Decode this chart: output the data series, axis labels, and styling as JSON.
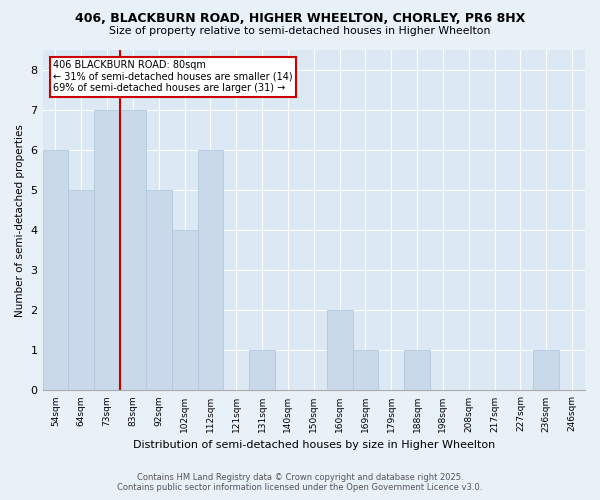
{
  "title": "406, BLACKBURN ROAD, HIGHER WHEELTON, CHORLEY, PR6 8HX",
  "subtitle": "Size of property relative to semi-detached houses in Higher Wheelton",
  "xlabel": "Distribution of semi-detached houses by size in Higher Wheelton",
  "ylabel": "Number of semi-detached properties",
  "bins": [
    "54sqm",
    "64sqm",
    "73sqm",
    "83sqm",
    "92sqm",
    "102sqm",
    "112sqm",
    "121sqm",
    "131sqm",
    "140sqm",
    "150sqm",
    "160sqm",
    "169sqm",
    "179sqm",
    "188sqm",
    "198sqm",
    "208sqm",
    "217sqm",
    "227sqm",
    "236sqm",
    "246sqm"
  ],
  "values": [
    6,
    5,
    7,
    7,
    5,
    4,
    6,
    0,
    1,
    0,
    0,
    2,
    1,
    0,
    1,
    0,
    0,
    0,
    0,
    1,
    0
  ],
  "bar_color": "#c9d9ea",
  "bar_edge_color": "#b0c8dc",
  "ref_line_bin": 2,
  "ref_line_label": "406 BLACKBURN ROAD: 80sqm",
  "annotation_smaller": "← 31% of semi-detached houses are smaller (14)",
  "annotation_larger": "69% of semi-detached houses are larger (31) →",
  "annotation_box_color": "#ffffff",
  "annotation_box_edge": "#cc0000",
  "ref_line_color": "#cc0000",
  "ylim": [
    0,
    8.5
  ],
  "yticks": [
    0,
    1,
    2,
    3,
    4,
    5,
    6,
    7,
    8
  ],
  "footer1": "Contains HM Land Registry data © Crown copyright and database right 2025.",
  "footer2": "Contains public sector information licensed under the Open Government Licence v3.0.",
  "bg_color": "#e8f0f8",
  "plot_bg_color": "#dce8f4"
}
